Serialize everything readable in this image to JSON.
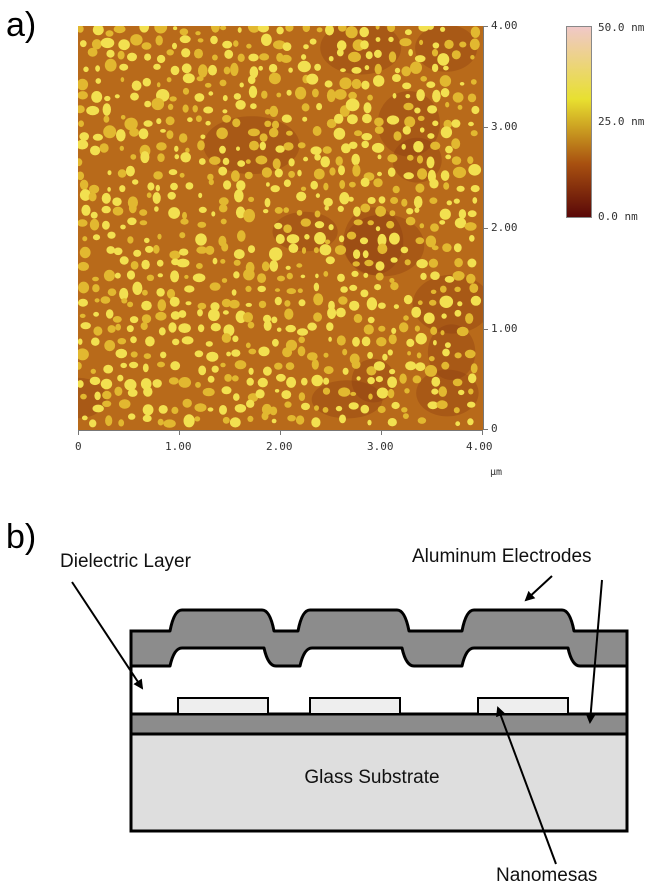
{
  "panel_a": {
    "label": "a)",
    "x_ticks": [
      "0",
      "1.00",
      "2.00",
      "3.00",
      "4.00"
    ],
    "y_ticks": [
      "4.00",
      "3.00",
      "2.00",
      "1.00",
      "0"
    ],
    "x_unit": "µm",
    "colorbar": {
      "labels": [
        "50.0 nm",
        "25.0 nm",
        "0.0 nm"
      ],
      "colors": [
        "#f0c8c8",
        "#e8e030",
        "#a85010",
        "#5a0808"
      ]
    },
    "colors": {
      "background": "#b86a1a",
      "grain_light": "#f2e050",
      "grain_mid": "#e2b830",
      "dark_patch": "#8a3a10"
    }
  },
  "panel_b": {
    "label": "b)",
    "labels": {
      "dielectric": "Dielectric Layer",
      "electrodes": "Aluminum Electrodes",
      "substrate": "Glass Substrate",
      "nanomesas": "Nanomesas"
    },
    "colors": {
      "electrode": "#8c8c8c",
      "substrate": "#dedede",
      "mesa": "#eeeeee",
      "dielectric": "#ffffff"
    }
  }
}
